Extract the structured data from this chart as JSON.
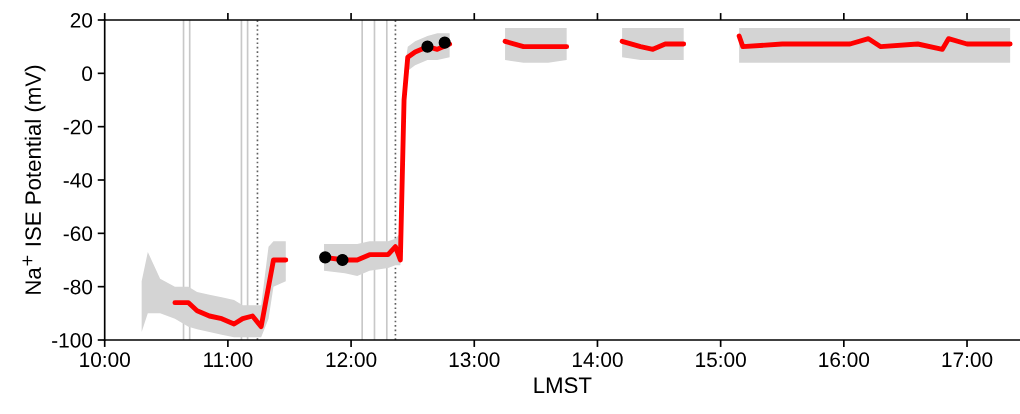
{
  "chart_data": {
    "type": "line",
    "xlabel": "LMST",
    "ylabel": "Na$^{+}$ ISE Potential (mV)",
    "xlim": [
      10,
      17.43
    ],
    "ylim": [
      -100,
      20
    ],
    "xticks": [
      {
        "value": 10,
        "label": "10:00"
      },
      {
        "value": 11,
        "label": "11:00"
      },
      {
        "value": 12,
        "label": "12:00"
      },
      {
        "value": 13,
        "label": "13:00"
      },
      {
        "value": 14,
        "label": "14:00"
      },
      {
        "value": 15,
        "label": "15:00"
      },
      {
        "value": 16,
        "label": "16:00"
      },
      {
        "value": 17,
        "label": "17:00"
      }
    ],
    "yticks": [
      -100,
      -80,
      -60,
      -40,
      -20,
      0,
      20
    ],
    "grid": false,
    "legend": false,
    "series": [
      {
        "color": "#ff0000",
        "x": [
          10.3,
          10.35,
          10.45,
          10.57,
          10.68,
          10.75,
          10.85,
          10.95,
          11.05,
          11.12,
          11.2,
          11.27,
          11.33,
          11.37,
          11.47,
          11.6,
          11.78,
          11.95,
          12.05,
          12.15,
          12.3,
          12.36,
          12.4,
          12.43,
          12.46,
          12.52,
          12.62,
          12.7,
          12.8,
          13.0,
          13.25,
          13.4,
          13.6,
          13.75,
          14.0,
          14.2,
          14.35,
          14.45,
          14.55,
          14.7,
          15.0,
          15.15,
          15.18,
          15.5,
          15.8,
          16.05,
          16.2,
          16.3,
          16.6,
          16.8,
          16.85,
          17.0,
          17.35
        ],
        "values": [
          null,
          null,
          null,
          -86,
          -86,
          -89,
          -91,
          -92,
          -94,
          -92,
          -91,
          -95,
          -80,
          -70,
          -70,
          null,
          -69,
          -70,
          -70,
          -68,
          -68,
          -65,
          -70,
          -10,
          6,
          8,
          10,
          9,
          11,
          null,
          12,
          10,
          10,
          10,
          null,
          12,
          10,
          9,
          11,
          11,
          null,
          14,
          10,
          11,
          11,
          11,
          13,
          10,
          11,
          9,
          13,
          11,
          11
        ],
        "lower": [
          -97,
          -90,
          -90,
          -92,
          -95,
          -96,
          -97,
          -98,
          -99,
          -99,
          -99,
          -99,
          -92,
          -80,
          -78,
          null,
          -74,
          -75,
          -76,
          -74,
          -73,
          -72,
          -72,
          -20,
          1,
          3,
          5,
          5,
          6,
          null,
          5,
          4,
          4,
          5,
          null,
          6,
          5,
          5,
          5,
          5,
          null,
          4,
          4,
          4,
          4,
          4,
          4,
          4,
          4,
          4,
          4,
          4,
          4
        ],
        "upper": [
          -78,
          -67,
          -77,
          -80,
          -80,
          -82,
          -83,
          -84,
          -85,
          -87,
          -87,
          -87,
          -65,
          -63,
          -63,
          null,
          -64,
          -64,
          -64,
          -63,
          -63,
          -62,
          -60,
          0,
          10,
          12,
          14,
          15,
          15,
          null,
          17,
          17,
          17,
          17,
          null,
          17,
          17,
          17,
          17,
          17,
          null,
          17,
          17,
          17,
          17,
          17,
          17,
          17,
          17,
          17,
          17,
          17,
          17
        ]
      },
      {
        "type": "scatter",
        "color": "#000000",
        "marker": "circle",
        "x": [
          11.79,
          11.93,
          12.62,
          12.76
        ],
        "values": [
          -69,
          -70,
          10,
          11.5
        ]
      }
    ],
    "ref_lines": [
      {
        "axis": "x",
        "value": 10.64,
        "color": "#c8c8c8",
        "line_style": "solid"
      },
      {
        "axis": "x",
        "value": 10.69,
        "color": "#c8c8c8",
        "line_style": "solid"
      },
      {
        "axis": "x",
        "value": 11.11,
        "color": "#c8c8c8",
        "line_style": "solid"
      },
      {
        "axis": "x",
        "value": 11.16,
        "color": "#c8c8c8",
        "line_style": "solid"
      },
      {
        "axis": "x",
        "value": 12.09,
        "color": "#c8c8c8",
        "line_style": "solid"
      },
      {
        "axis": "x",
        "value": 12.19,
        "color": "#c8c8c8",
        "line_style": "solid"
      },
      {
        "axis": "x",
        "value": 12.29,
        "color": "#c8c8c8",
        "line_style": "solid"
      },
      {
        "axis": "x",
        "value": 11.24,
        "color": "#606060",
        "line_style": "dotted"
      },
      {
        "axis": "x",
        "value": 12.36,
        "color": "#606060",
        "line_style": "dotted"
      }
    ]
  }
}
